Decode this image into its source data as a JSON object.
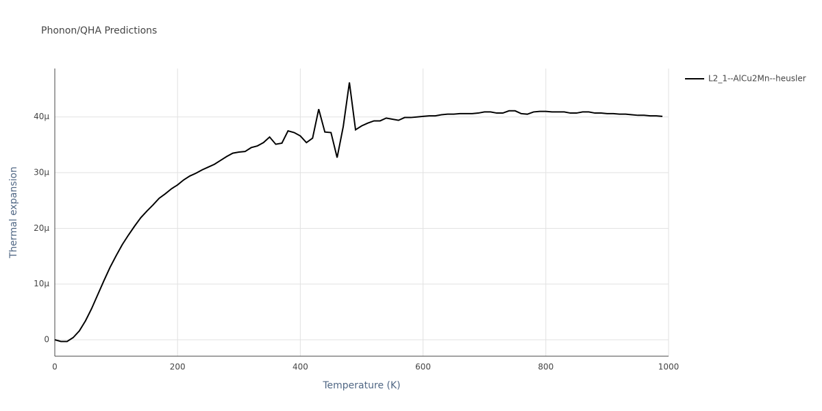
{
  "chart_data": {
    "type": "line",
    "title": "Phonon/QHA Predictions",
    "x_label": "Temperature (K)",
    "y_label": "Thermal expansion",
    "x": [
      0,
      10,
      20,
      30,
      40,
      50,
      60,
      70,
      80,
      90,
      100,
      110,
      120,
      130,
      140,
      150,
      160,
      170,
      180,
      190,
      200,
      210,
      220,
      230,
      240,
      250,
      260,
      270,
      280,
      290,
      300,
      310,
      320,
      330,
      340,
      350,
      360,
      370,
      380,
      390,
      400,
      410,
      420,
      430,
      440,
      450,
      460,
      470,
      480,
      490,
      500,
      510,
      520,
      530,
      540,
      550,
      560,
      570,
      580,
      590,
      600,
      610,
      620,
      630,
      640,
      650,
      660,
      670,
      680,
      690,
      700,
      710,
      720,
      730,
      740,
      750,
      760,
      770,
      780,
      790,
      800,
      810,
      820,
      830,
      840,
      850,
      860,
      870,
      880,
      890,
      900,
      910,
      920,
      930,
      940,
      950,
      960,
      970,
      980,
      990
    ],
    "series": [
      {
        "name": "L2_1--AlCu2Mn--heusler",
        "color": "#000000",
        "values": [
          0,
          -3e-07,
          -3e-07,
          4e-07,
          1.6e-06,
          3.4e-06,
          5.6e-06,
          8.1e-06,
          1.06e-05,
          1.3e-05,
          1.51e-05,
          1.71e-05,
          1.88e-05,
          2.04e-05,
          2.19e-05,
          2.31e-05,
          2.42e-05,
          2.54e-05,
          2.62e-05,
          2.71e-05,
          2.78e-05,
          2.87e-05,
          2.94e-05,
          2.99e-05,
          3.05e-05,
          3.1e-05,
          3.15e-05,
          3.22e-05,
          3.29e-05,
          3.35e-05,
          3.37e-05,
          3.38e-05,
          3.45e-05,
          3.48e-05,
          3.54e-05,
          3.64e-05,
          3.51e-05,
          3.53e-05,
          3.75e-05,
          3.72e-05,
          3.66e-05,
          3.54e-05,
          3.62e-05,
          4.14e-05,
          3.73e-05,
          3.72e-05,
          3.27e-05,
          3.83e-05,
          4.62e-05,
          3.77e-05,
          3.84e-05,
          3.89e-05,
          3.93e-05,
          3.93e-05,
          3.98e-05,
          3.96e-05,
          3.94e-05,
          3.99e-05,
          3.99e-05,
          4e-05,
          4.01e-05,
          4.02e-05,
          4.02e-05,
          4.04e-05,
          4.05e-05,
          4.05e-05,
          4.06e-05,
          4.06e-05,
          4.06e-05,
          4.07e-05,
          4.09e-05,
          4.09e-05,
          4.07e-05,
          4.07e-05,
          4.11e-05,
          4.11e-05,
          4.06e-05,
          4.05e-05,
          4.09e-05,
          4.1e-05,
          4.1e-05,
          4.09e-05,
          4.09e-05,
          4.09e-05,
          4.07e-05,
          4.07e-05,
          4.09e-05,
          4.09e-05,
          4.07e-05,
          4.07e-05,
          4.06e-05,
          4.06e-05,
          4.05e-05,
          4.05e-05,
          4.04e-05,
          4.03e-05,
          4.03e-05,
          4.02e-05,
          4.02e-05,
          4.01e-05
        ]
      }
    ],
    "xlim": [
      0,
      1000
    ],
    "xticks": [
      0,
      200,
      400,
      600,
      800,
      1000
    ],
    "ylim": [
      -2.95e-06,
      4.87e-05
    ],
    "yticks": [
      0,
      {
        "value": 1e-05,
        "label": "10μ"
      },
      {
        "value": 2e-05,
        "label": "20μ"
      },
      {
        "value": 3e-05,
        "label": "30μ"
      },
      {
        "value": 4e-05,
        "label": "40μ"
      }
    ],
    "grid": true
  }
}
